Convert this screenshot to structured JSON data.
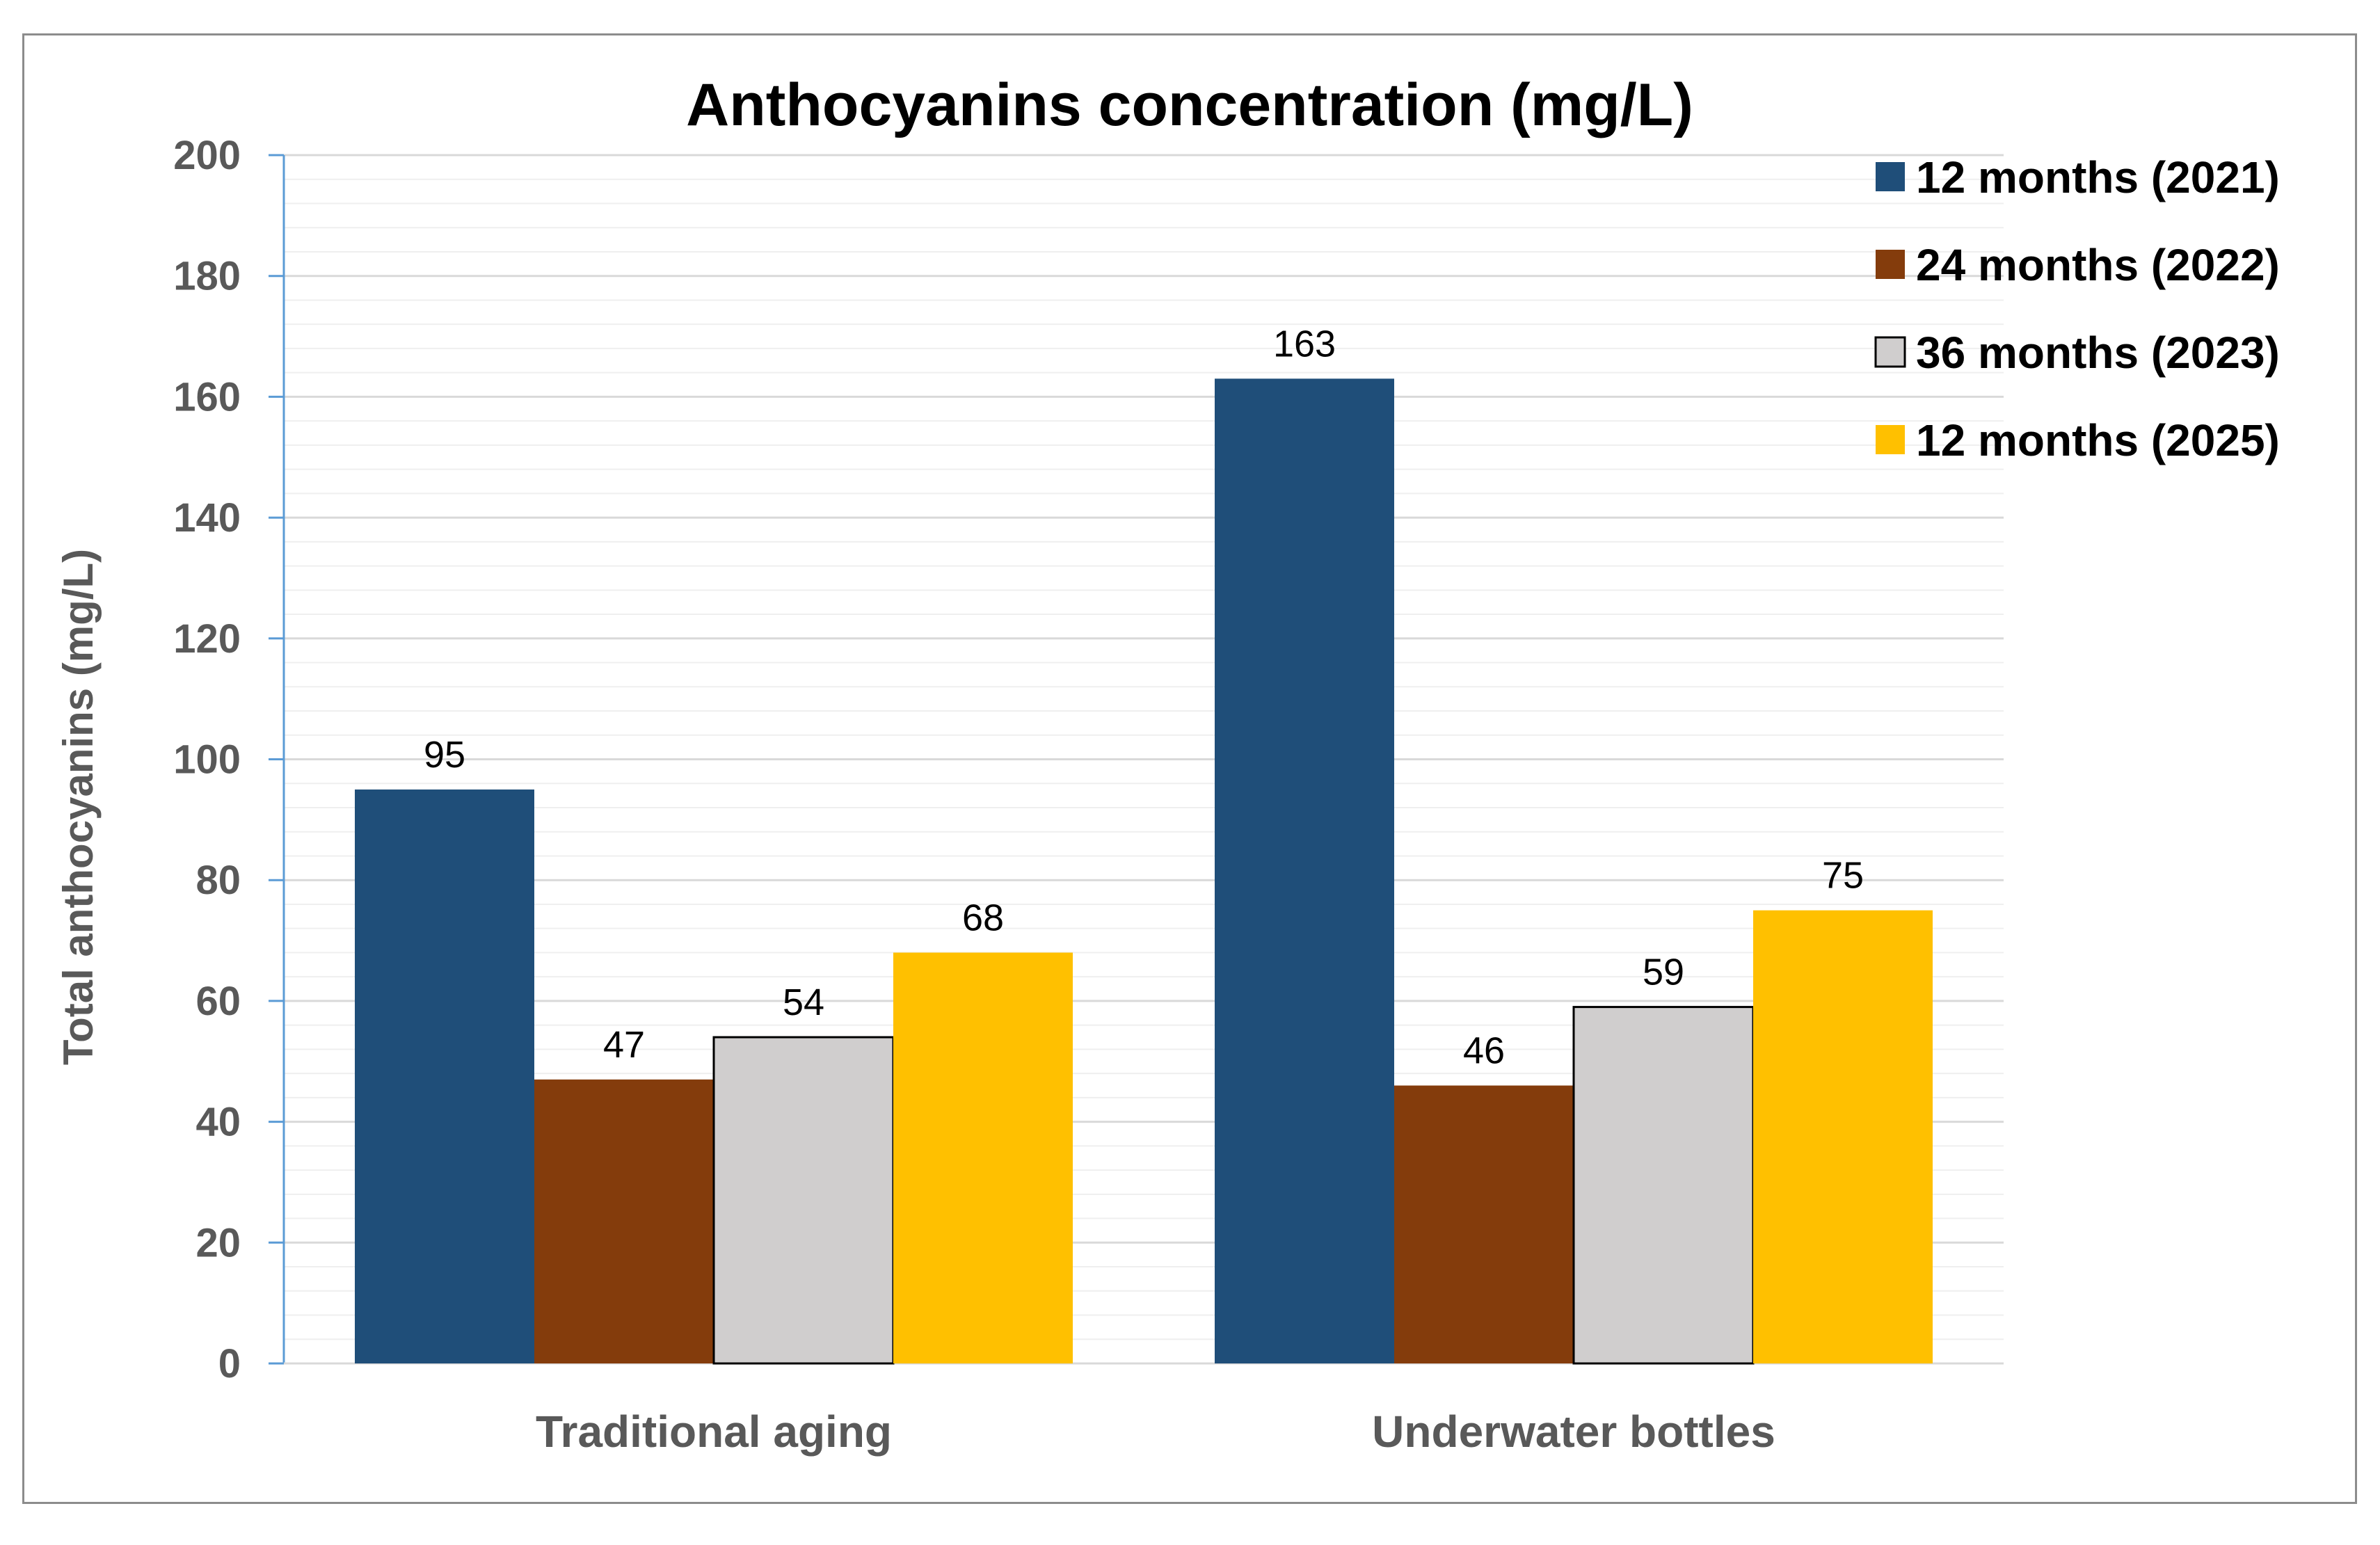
{
  "chart_data": {
    "type": "bar",
    "title": "Anthocyanins concentration (mg/L)",
    "ylabel": "Total anthocyanins (mg/L)",
    "xlabel": "",
    "ylim": [
      0,
      200
    ],
    "yticks": [
      0,
      20,
      40,
      60,
      80,
      100,
      120,
      140,
      160,
      180,
      200
    ],
    "categories": [
      "Traditional aging",
      "Underwater bottles"
    ],
    "series": [
      {
        "name": "12 months (2021)",
        "color": "#1F4E79",
        "values": [
          95,
          163
        ]
      },
      {
        "name": "24 months (2022)",
        "color": "#843C0C",
        "values": [
          47,
          46
        ]
      },
      {
        "name": "36 months (2023)",
        "color": "#D0CECE",
        "values": [
          54,
          59
        ]
      },
      {
        "name": "12 months (2025)",
        "color": "#FFC000",
        "values": [
          68,
          75
        ]
      }
    ],
    "legend_position": "top-right",
    "grid": true
  }
}
